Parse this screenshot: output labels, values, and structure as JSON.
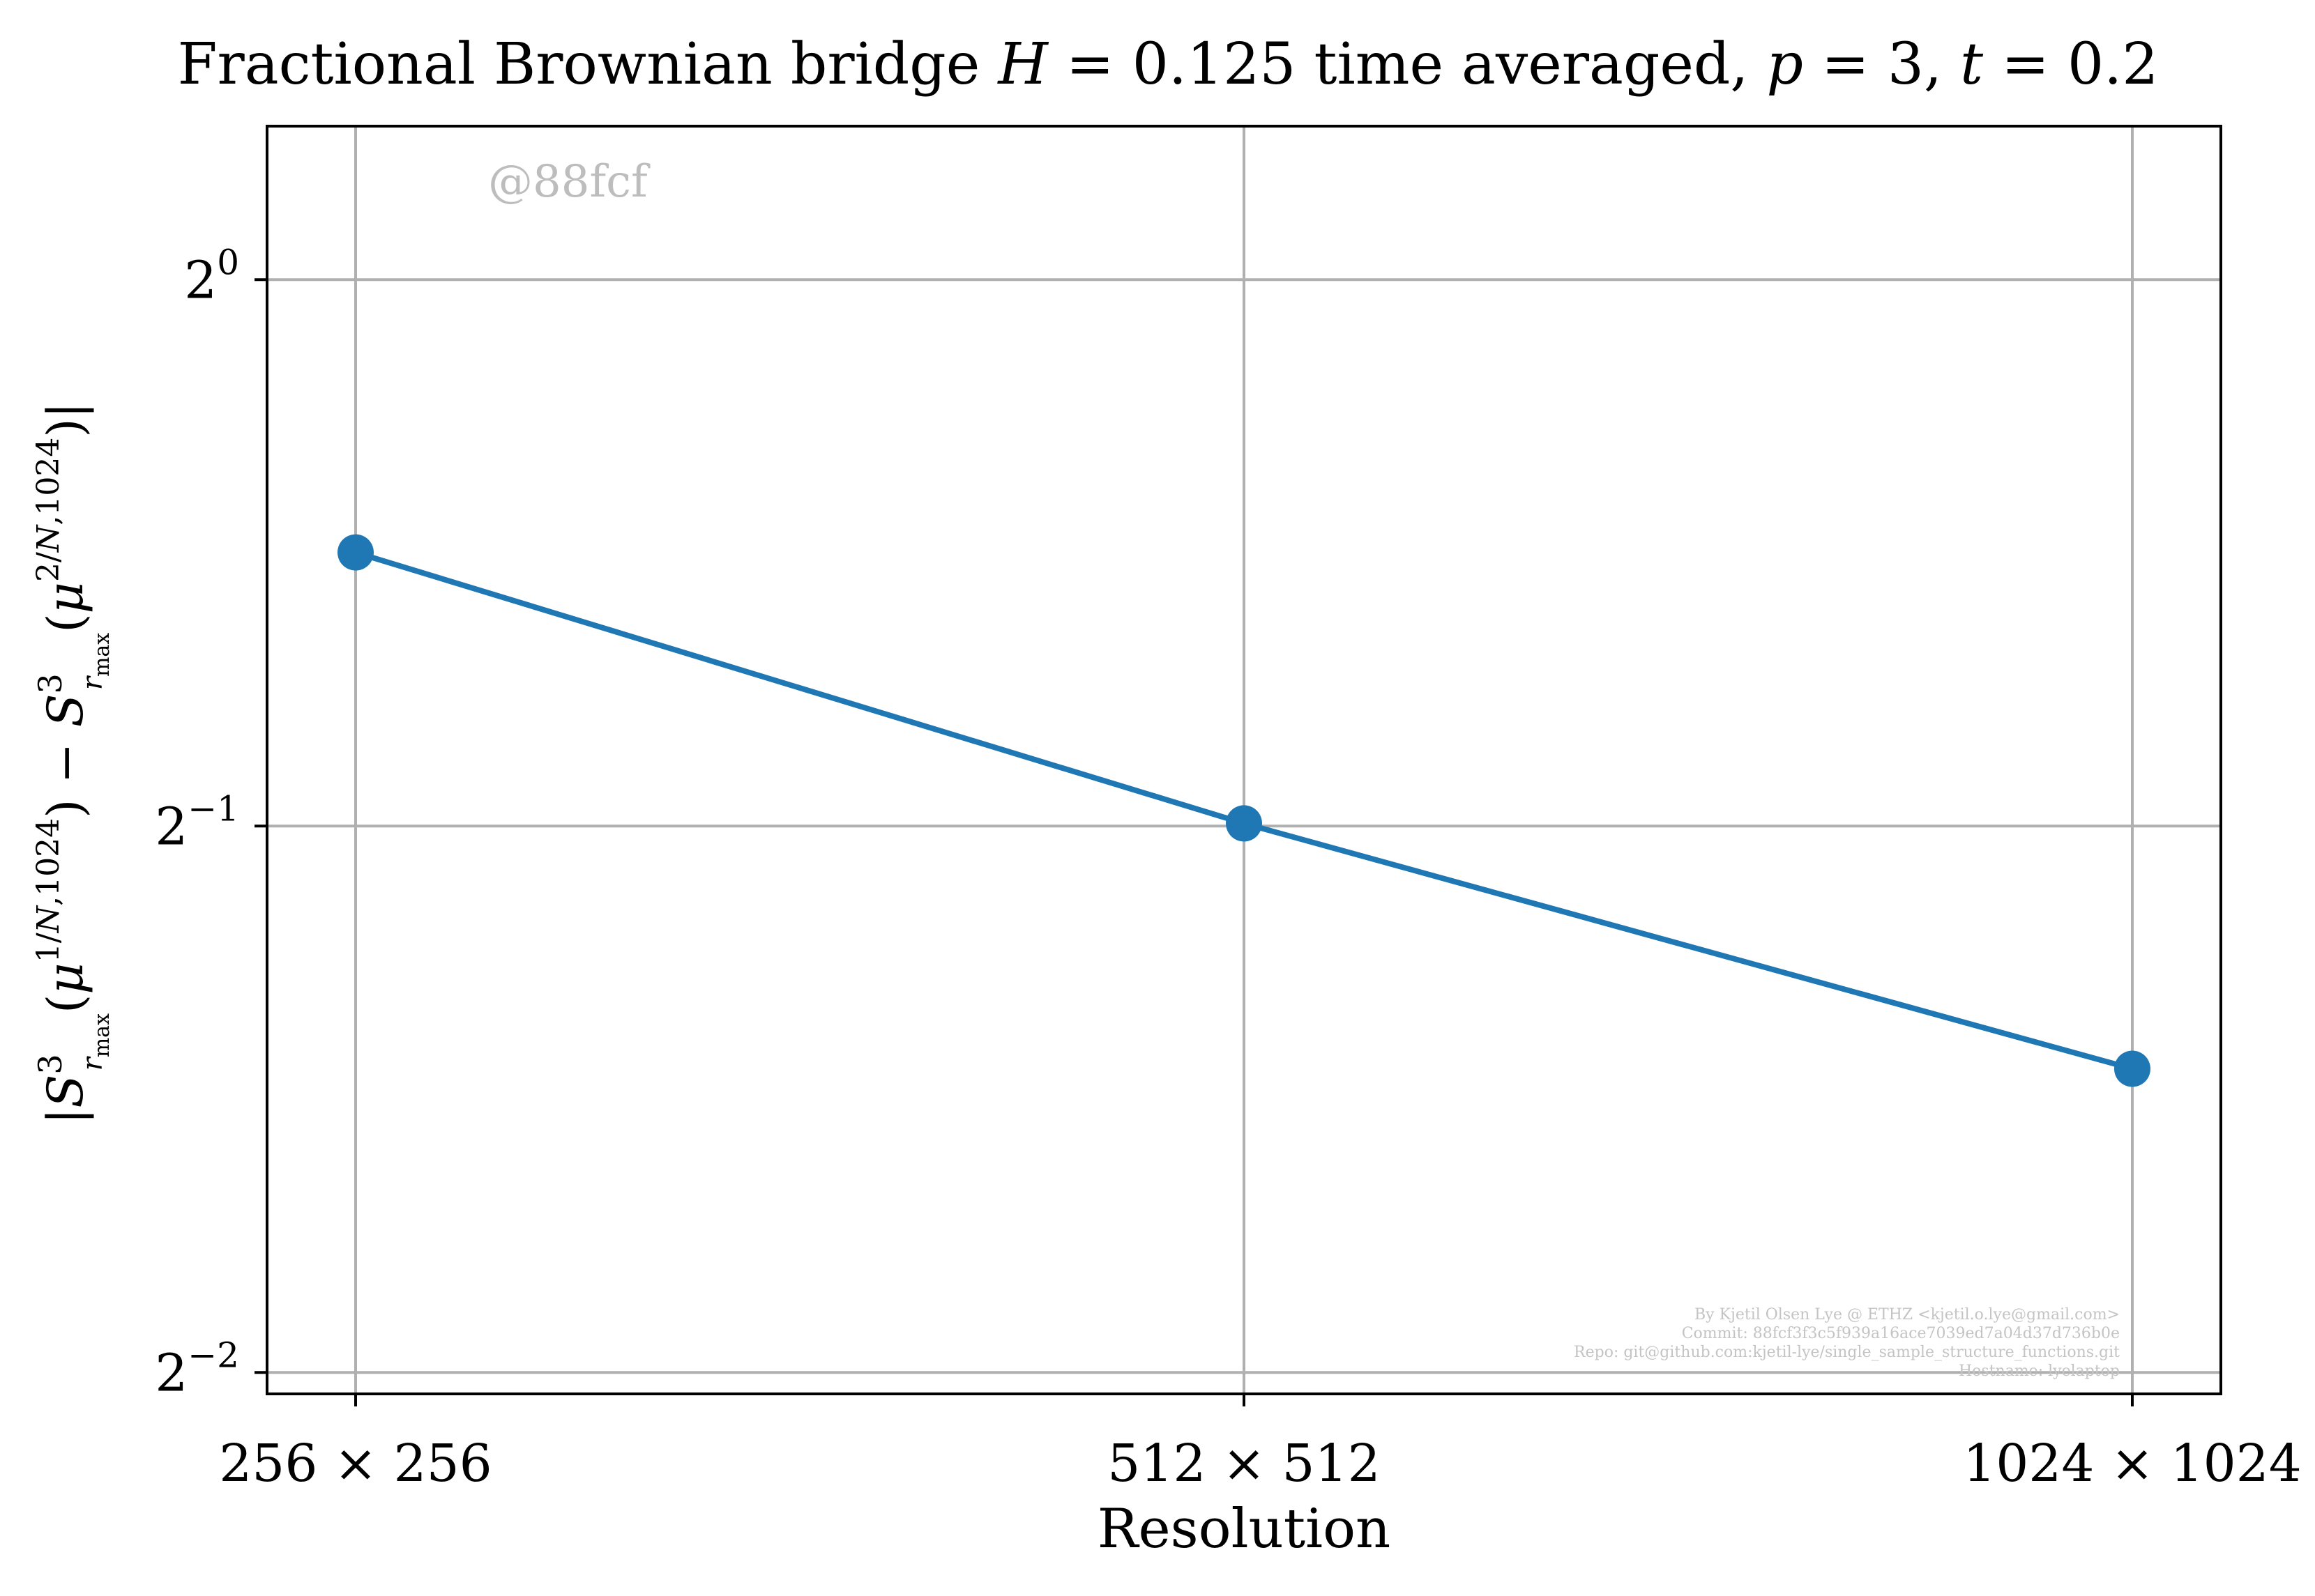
{
  "chart_data": {
    "type": "line",
    "title": "Fractional Brownian bridge H = 0.125 time averaged, p = 3, t = 0.2",
    "xlabel": "Resolution",
    "ylabel": "|S^3_{r_max}(μ^{1/N,1024}) − S^3_{r_max}(μ^{2/N,1024})|",
    "x_scale": "log2",
    "y_scale": "log2",
    "categories": [
      "256 × 256",
      "512 × 512",
      "1024 × 1024"
    ],
    "x": [
      256,
      512,
      1024
    ],
    "y_ticks": [
      {
        "value": 1,
        "base": "2",
        "exp": "0"
      },
      {
        "value": 0.5,
        "base": "2",
        "exp": "−1"
      },
      {
        "value": 0.25,
        "base": "2",
        "exp": "−2"
      }
    ],
    "ylim": [
      0.2433,
      1.215
    ],
    "grid": true,
    "series": [
      {
        "values": [
          0.7075,
          0.5017,
          0.3675
        ],
        "color": "#1f77b4",
        "marker": "circle"
      }
    ],
    "annotations": {
      "watermark": "@88fcf",
      "credits": [
        "By Kjetil Olsen Lye @ ETHZ <kjetil.o.lye@gmail.com>",
        "Commit: 88fcf3f3c5f939a16ace7039ed7a04d37d736b0e",
        "Repo: git@github.com:kjetil-lye/single_sample_structure_functions.git",
        "Hostname: lyelaptop"
      ]
    }
  }
}
